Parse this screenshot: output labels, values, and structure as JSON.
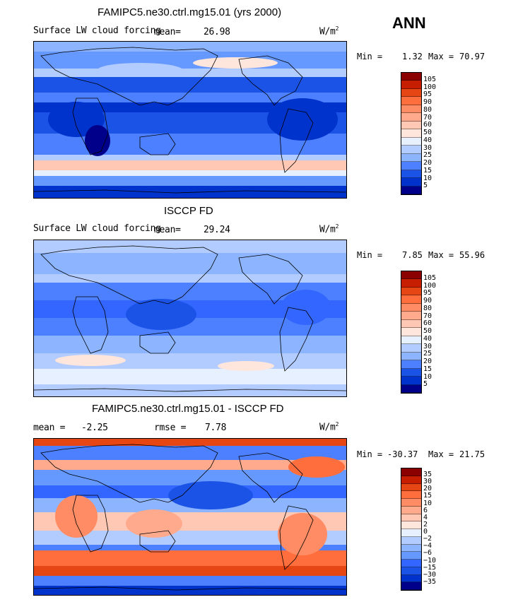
{
  "season": "ANN",
  "colors": {
    "scale": [
      "#00008b",
      "#0033cc",
      "#1a53e6",
      "#3366ff",
      "#4d80ff",
      "#6699ff",
      "#8cb4ff",
      "#b3ccff",
      "#e6f0ff",
      "#ffe6dc",
      "#ffc8b4",
      "#ffaa8c",
      "#ff8c64",
      "#ff6e3c",
      "#e64614",
      "#c81e00",
      "#8b0000"
    ]
  },
  "panels": [
    {
      "title": "FAMIPC5.ne30.ctrl.mg15.01 (yrs 2000)",
      "subtitle": "Surface LW cloud forcing",
      "mean_label": "mean=",
      "mean_value": "26.98",
      "units": "W/m",
      "units_sup": "2",
      "min_label": "Min =",
      "min_value": "1.32",
      "max_label": "Max =",
      "max_value": "70.97",
      "colorbar_labels": [
        "105",
        "100",
        "95",
        "90",
        "80",
        "70",
        "60",
        "50",
        "40",
        "30",
        "25",
        "20",
        "15",
        "10",
        "5"
      ]
    },
    {
      "title": "ISCCP FD",
      "subtitle": "Surface LW cloud forcing",
      "mean_label": "mean=",
      "mean_value": "29.24",
      "units": "W/m",
      "units_sup": "2",
      "min_label": "Min =",
      "min_value": "7.85",
      "max_label": "Max =",
      "max_value": "55.96",
      "colorbar_labels": [
        "105",
        "100",
        "95",
        "90",
        "80",
        "70",
        "60",
        "50",
        "40",
        "30",
        "25",
        "20",
        "15",
        "10",
        "5"
      ]
    },
    {
      "title": "FAMIPC5.ne30.ctrl.mg15.01 - ISCCP FD",
      "mean_label": "mean =",
      "mean_value": "-2.25",
      "rmse_label": "rmse =",
      "rmse_value": "7.78",
      "units": "W/m",
      "units_sup": "2",
      "min_label": "Min =",
      "min_value": "-30.37",
      "max_label": "Max =",
      "max_value": "21.75",
      "colorbar_labels": [
        "35",
        "30",
        "20",
        "15",
        "10",
        "6",
        "4",
        "2",
        "0",
        "−2",
        "−4",
        "−6",
        "−10",
        "−15",
        "−30",
        "−35"
      ]
    }
  ]
}
